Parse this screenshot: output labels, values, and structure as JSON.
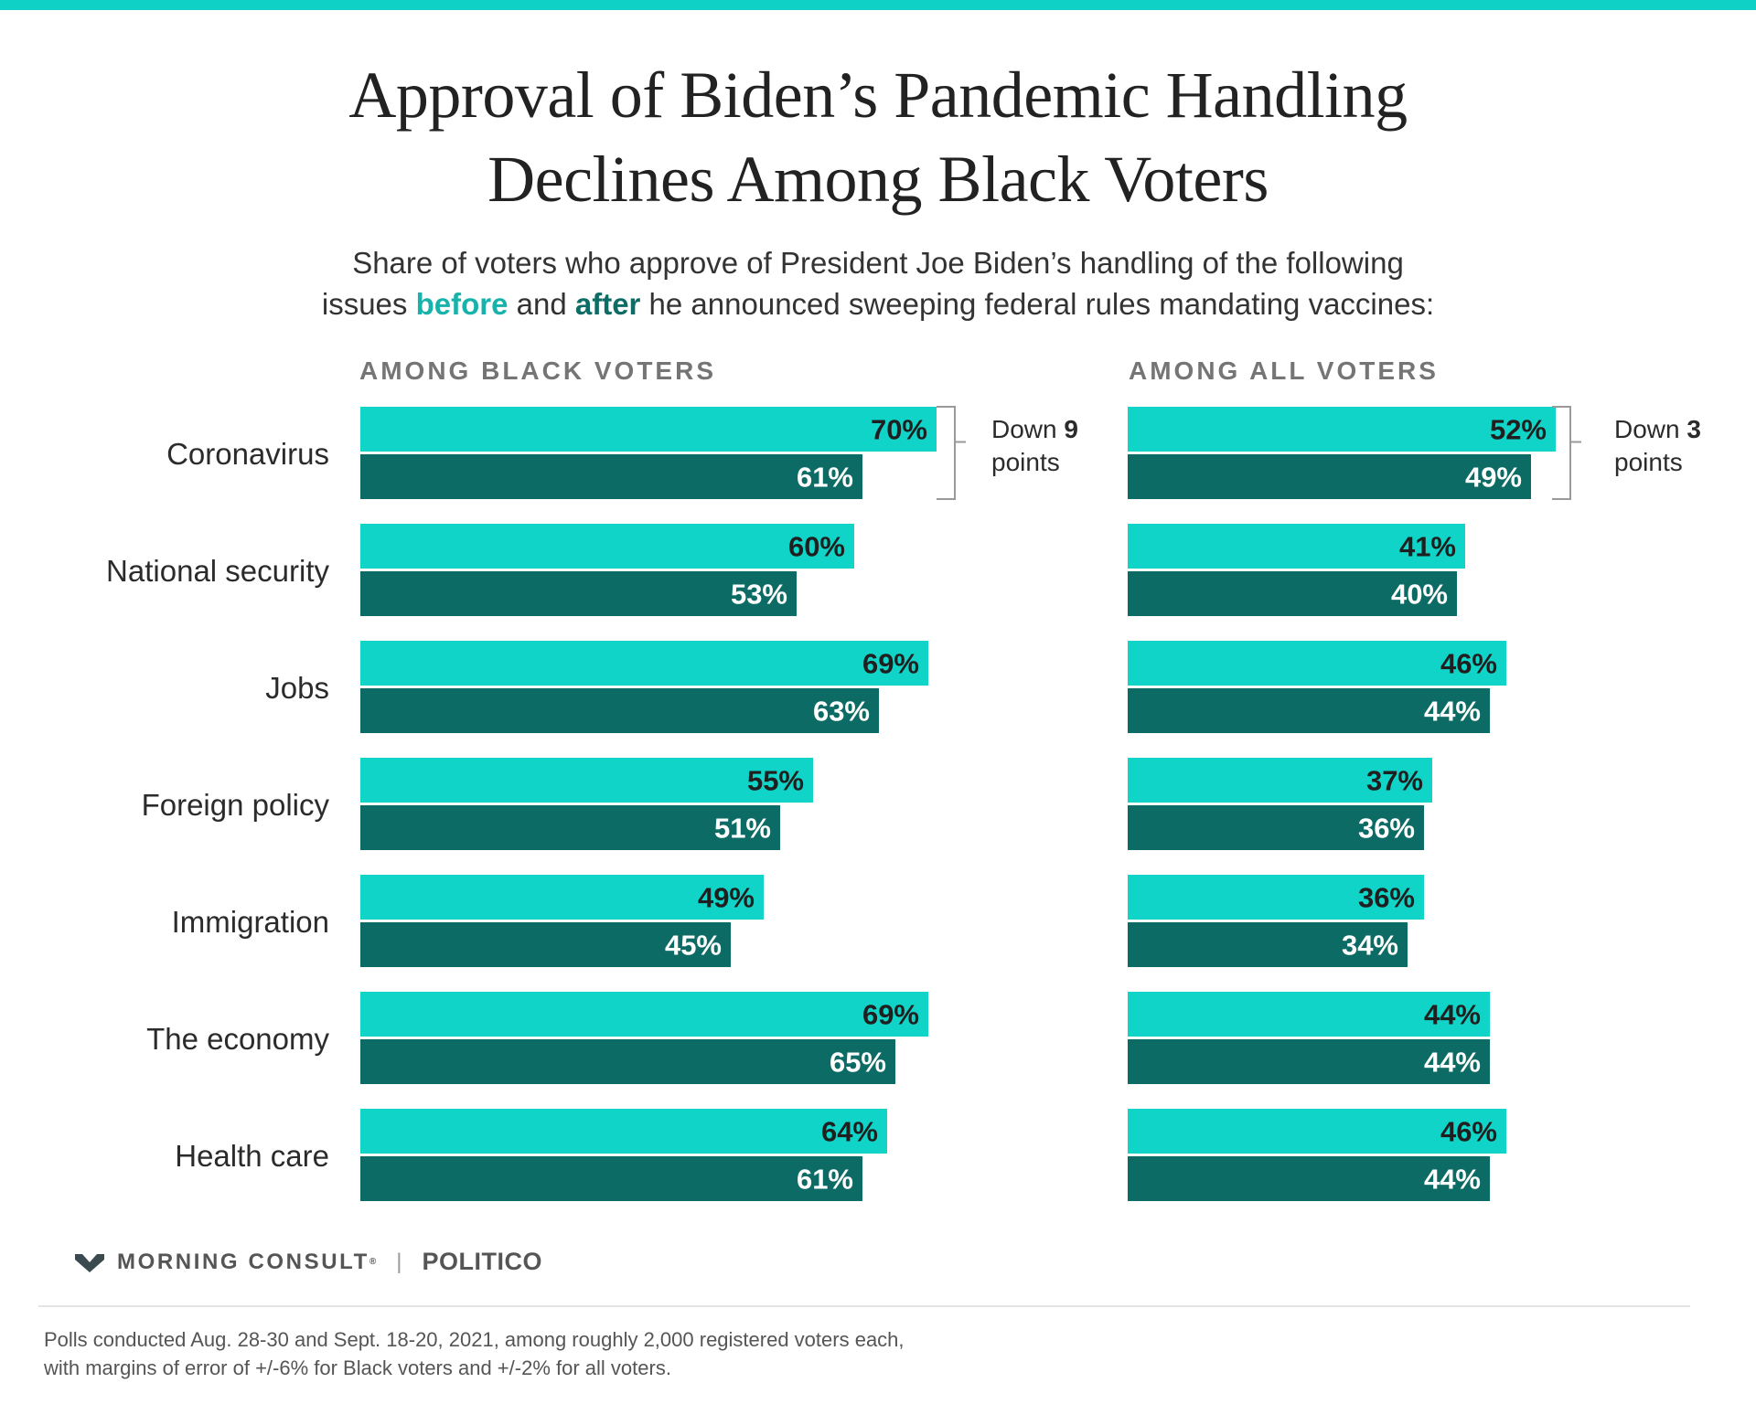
{
  "title": {
    "line1": "Approval of Biden’s Pandemic Handling",
    "line2": "Declines Among Black Voters"
  },
  "subtitle": {
    "line1": "Share of voters who approve of President Joe Biden’s handling of the following",
    "line2_pre": "issues ",
    "before_word": "before",
    "line2_mid": " and ",
    "after_word": "after",
    "line2_post": " he announced sweeping federal rules mandating vaccines:"
  },
  "colors": {
    "before": "#10d4c8",
    "after": "#0c6b64",
    "top_bar": "#10d1c5"
  },
  "chart_data": [
    {
      "type": "bar",
      "title": "AMONG BLACK VOTERS",
      "orientation": "horizontal",
      "categories": [
        "Coronavirus",
        "National security",
        "Jobs",
        "Foreign policy",
        "Immigration",
        "The economy",
        "Health care"
      ],
      "series": [
        {
          "name": "before",
          "values": [
            70,
            60,
            69,
            55,
            49,
            69,
            64
          ]
        },
        {
          "name": "after",
          "values": [
            61,
            53,
            63,
            51,
            45,
            65,
            61
          ]
        }
      ],
      "value_suffix": "%",
      "annotation": {
        "category": "Coronavirus",
        "prefix": "Down",
        "value": "9",
        "suffix": "points"
      }
    },
    {
      "type": "bar",
      "title": "AMONG ALL VOTERS",
      "orientation": "horizontal",
      "categories": [
        "Coronavirus",
        "National security",
        "Jobs",
        "Foreign policy",
        "Immigration",
        "The economy",
        "Health care"
      ],
      "series": [
        {
          "name": "before",
          "values": [
            52,
            41,
            46,
            37,
            36,
            44,
            46
          ]
        },
        {
          "name": "after",
          "values": [
            49,
            40,
            44,
            36,
            34,
            44,
            44
          ]
        }
      ],
      "value_suffix": "%",
      "annotation": {
        "category": "Coronavirus",
        "prefix": "Down",
        "value": "3",
        "suffix": "points"
      }
    }
  ],
  "footer": {
    "brand": "MORNING CONSULT",
    "trademark": "®",
    "separator": "|",
    "partner": "POLITICO",
    "note_line1": "Polls conducted Aug. 28-30 and Sept. 18-20, 2021, among roughly 2,000 registered voters each,",
    "note_line2": "with margins of error of +/-6% for Black voters and +/-2% for all voters."
  }
}
